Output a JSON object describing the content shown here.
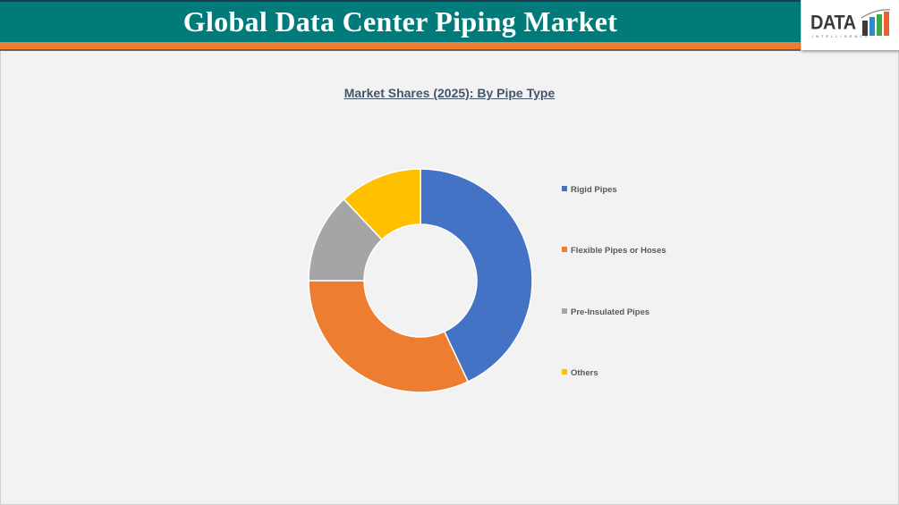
{
  "header": {
    "title": "Global Data Center Piping Market",
    "colors": {
      "banner": "#007b7a",
      "stripe": "#ed7d31"
    }
  },
  "logo": {
    "text": "DATA",
    "subtext": "INTELLIGENCE"
  },
  "chart_data": {
    "type": "pie",
    "subtype": "donut",
    "title": "Market Shares (2025): By Pipe Type",
    "categories": [
      "Rigid Pipes",
      "Flexible Pipes or Hoses",
      "Pre-Insulated Pipes",
      "Others"
    ],
    "values": [
      43,
      32,
      13,
      12
    ],
    "unit": "%",
    "colors": [
      "#4472c4",
      "#ed7d31",
      "#a5a5a5",
      "#ffc000"
    ],
    "legend_position": "right",
    "data_labels": false
  },
  "legend": {
    "items": [
      {
        "label": "Rigid Pipes",
        "color": "#4472c4"
      },
      {
        "label": "Flexible Pipes or Hoses",
        "color": "#ed7d31"
      },
      {
        "label": "Pre-Insulated Pipes",
        "color": "#a5a5a5"
      },
      {
        "label": "Others",
        "color": "#ffc000"
      }
    ]
  }
}
